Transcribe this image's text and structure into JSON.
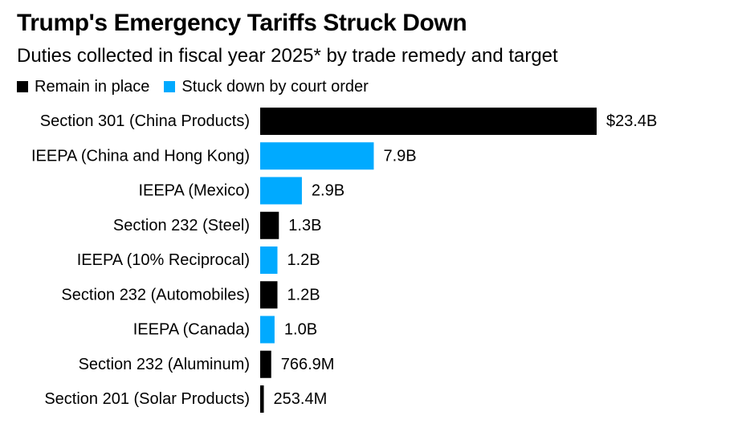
{
  "chart_data": {
    "type": "bar",
    "orientation": "horizontal",
    "title": "Trump's Emergency Tariffs Struck Down",
    "subtitle": "Duties collected in fiscal year 2025* by trade remedy and target",
    "legend": [
      {
        "key": "remain",
        "label": "Remain in place",
        "color": "#000000"
      },
      {
        "key": "struck",
        "label": "Stuck down by court order",
        "color": "#00aaff"
      }
    ],
    "unit": "USD billions",
    "xlim": [
      0,
      23.4
    ],
    "grid": false,
    "categories": [
      "Section 301 (China Products)",
      "IEEPA (China and Hong Kong)",
      "IEEPA (Mexico)",
      "Section 232 (Steel)",
      "IEEPA (10% Reciprocal)",
      "Section 232 (Automobiles)",
      "IEEPA (Canada)",
      "Section 232 (Aluminum)",
      "Section 201 (Solar Products)"
    ],
    "values": [
      23.4,
      7.9,
      2.9,
      1.3,
      1.2,
      1.2,
      1.0,
      0.7669,
      0.2534
    ],
    "status": [
      "remain",
      "struck",
      "struck",
      "remain",
      "struck",
      "remain",
      "struck",
      "remain",
      "remain"
    ],
    "value_labels": [
      "$23.4B",
      "7.9B",
      "2.9B",
      "1.3B",
      "1.2B",
      "1.2B",
      "1.0B",
      "766.9M",
      "253.4M"
    ]
  }
}
